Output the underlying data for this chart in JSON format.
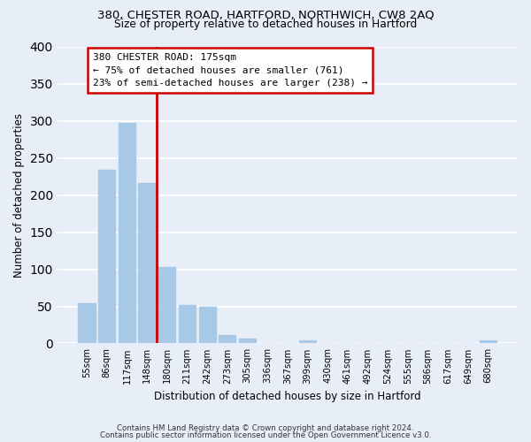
{
  "title1": "380, CHESTER ROAD, HARTFORD, NORTHWICH, CW8 2AQ",
  "title2": "Size of property relative to detached houses in Hartford",
  "xlabel": "Distribution of detached houses by size in Hartford",
  "ylabel": "Number of detached properties",
  "bar_labels": [
    "55sqm",
    "86sqm",
    "117sqm",
    "148sqm",
    "180sqm",
    "211sqm",
    "242sqm",
    "273sqm",
    "305sqm",
    "336sqm",
    "367sqm",
    "399sqm",
    "430sqm",
    "461sqm",
    "492sqm",
    "524sqm",
    "555sqm",
    "586sqm",
    "617sqm",
    "649sqm",
    "680sqm"
  ],
  "bar_heights": [
    54,
    234,
    297,
    216,
    103,
    52,
    49,
    11,
    6,
    0,
    0,
    4,
    0,
    0,
    0,
    0,
    0,
    0,
    0,
    0,
    4
  ],
  "bar_color": "#a8c8e8",
  "vline_pos": 3.5,
  "vline_color": "#cc0000",
  "annotation_title": "380 CHESTER ROAD: 175sqm",
  "annotation_line1": "← 75% of detached houses are smaller (761)",
  "annotation_line2": "23% of semi-detached houses are larger (238) →",
  "annotation_box_color": "#cc0000",
  "ylim": [
    0,
    400
  ],
  "yticks": [
    0,
    50,
    100,
    150,
    200,
    250,
    300,
    350,
    400
  ],
  "footnote1": "Contains HM Land Registry data © Crown copyright and database right 2024.",
  "footnote2": "Contains public sector information licensed under the Open Government Licence v3.0.",
  "bg_color": "#e8eef8"
}
